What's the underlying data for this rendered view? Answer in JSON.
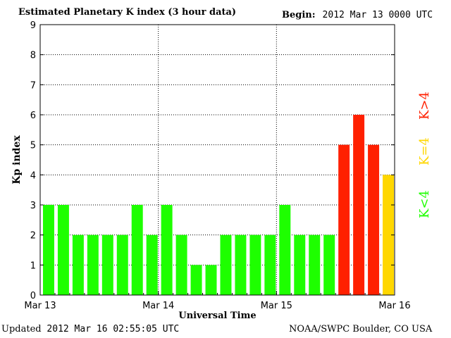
{
  "header": {
    "title": "Estimated Planetary K index (3 hour data)",
    "begin_label": "Begin:",
    "begin_value": "2012 Mar 13 0000 UTC"
  },
  "footer": {
    "updated_label": "Updated",
    "updated_value": "2012 Mar 16 02:55:05 UTC",
    "source": "NOAA/SWPC Boulder, CO USA"
  },
  "legend": [
    {
      "label": "K>4",
      "color": "#ff2000"
    },
    {
      "label": "K=4",
      "color": "#ffd700"
    },
    {
      "label": "K<4",
      "color": "#1eff00"
    }
  ],
  "chart_data": {
    "type": "bar",
    "title": "Estimated Planetary K index (3 hour data)",
    "xlabel": "Universal Time",
    "ylabel": "Kp index",
    "ylim": [
      0,
      9
    ],
    "yticks": [
      0,
      1,
      2,
      3,
      4,
      5,
      6,
      7,
      8,
      9
    ],
    "xticks": [
      "Mar 13",
      "Mar 14",
      "Mar 15",
      "Mar 16"
    ],
    "grid": true,
    "values": [
      3,
      3,
      2,
      2,
      2,
      2,
      3,
      2,
      3,
      2,
      1,
      1,
      2,
      2,
      2,
      2,
      3,
      2,
      2,
      2,
      5,
      6,
      5,
      4
    ],
    "colors": {
      "below": "#1eff00",
      "equal": "#ffd700",
      "above": "#ff2000"
    }
  }
}
